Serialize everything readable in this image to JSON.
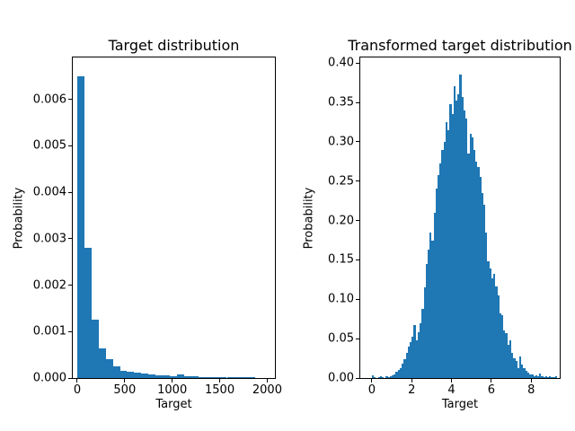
{
  "figure": {
    "background": "#ffffff",
    "bar_color": "#1f77b4",
    "text_color": "#000000"
  },
  "chart_data": [
    {
      "type": "bar",
      "title": "Target distribution",
      "xlabel": "Target",
      "ylabel": "Probability",
      "xlim": [
        -47,
        2081
      ],
      "ylim": [
        0,
        0.0069
      ],
      "xticks": [
        0,
        500,
        1000,
        1500,
        2000
      ],
      "xtick_labels": [
        "0",
        "500",
        "1000",
        "1500",
        "2000"
      ],
      "yticks": [
        0,
        0.001,
        0.002,
        0.003,
        0.004,
        0.005,
        0.006
      ],
      "ytick_labels": [
        "0.000",
        "0.001",
        "0.002",
        "0.003",
        "0.004",
        "0.005",
        "0.006"
      ],
      "grid": false,
      "legend": null,
      "bin_start": 0,
      "bin_width": 75,
      "values": [
        0.0065,
        0.0028,
        0.00125,
        0.00063,
        0.0004,
        0.00026,
        0.00016,
        0.00013,
        0.00011,
        9e-05,
        7e-05,
        6e-05,
        5e-05,
        4e-05,
        7e-05,
        3e-05,
        3e-05,
        2e-05,
        2e-05,
        2e-05,
        2e-05,
        2e-05,
        2e-05,
        2e-05,
        2e-05
      ]
    },
    {
      "type": "bar",
      "title": "Transformed target distribution",
      "xlabel": "Target",
      "ylabel": "Probability",
      "xlim": [
        -0.58,
        9.43
      ],
      "ylim": [
        0,
        0.407
      ],
      "xticks": [
        0,
        2,
        4,
        6,
        8
      ],
      "xtick_labels": [
        "0",
        "2",
        "4",
        "6",
        "8"
      ],
      "yticks": [
        0,
        0.05,
        0.1,
        0.15,
        0.2,
        0.25,
        0.3,
        0.35,
        0.4
      ],
      "ytick_labels": [
        "0.00",
        "0.05",
        "0.10",
        "0.15",
        "0.20",
        "0.25",
        "0.30",
        "0.35",
        "0.40"
      ],
      "grid": false,
      "legend": null,
      "bin_start": 0,
      "bin_width": 0.1,
      "values": [
        0.003,
        0.001,
        0,
        0.001,
        0.002,
        0.001,
        0,
        0.002,
        0.001,
        0.002,
        0.003,
        0.005,
        0.008,
        0.01,
        0.013,
        0.018,
        0.024,
        0.032,
        0.04,
        0.046,
        0.052,
        0.067,
        0.048,
        0.058,
        0.07,
        0.088,
        0.115,
        0.145,
        0.163,
        0.185,
        0.175,
        0.21,
        0.24,
        0.258,
        0.273,
        0.29,
        0.3,
        0.325,
        0.315,
        0.348,
        0.335,
        0.37,
        0.352,
        0.36,
        0.385,
        0.357,
        0.34,
        0.33,
        0.285,
        0.31,
        0.305,
        0.29,
        0.275,
        0.268,
        0.255,
        0.235,
        0.22,
        0.185,
        0.148,
        0.139,
        0.127,
        0.132,
        0.116,
        0.105,
        0.082,
        0.08,
        0.06,
        0.057,
        0.042,
        0.048,
        0.032,
        0.025,
        0.022,
        0.013,
        0.027,
        0.017,
        0.013,
        0.009,
        0.007,
        0.005,
        0.004,
        0.002,
        0.003,
        0.002,
        0.006,
        0.002,
        0.001,
        0.002,
        0.001,
        0.002,
        0.001,
        0.001,
        0.002
      ]
    }
  ]
}
